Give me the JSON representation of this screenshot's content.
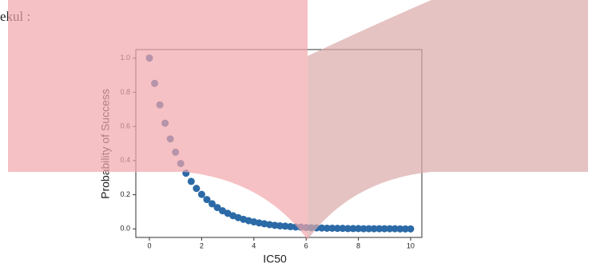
{
  "page_text": "ekul :",
  "chart_data": {
    "type": "scatter",
    "xlabel": "IC50",
    "ylabel": "Probability of Success",
    "color": "#2b6aa6",
    "x": [
      0,
      0.2,
      0.4,
      0.6,
      0.8,
      1.0,
      1.2,
      1.4,
      1.6,
      1.8,
      2.0,
      2.2,
      2.4,
      2.6,
      2.8,
      3.0,
      3.2,
      3.4,
      3.6,
      3.8,
      4.0,
      4.2,
      4.4,
      4.6,
      4.8,
      5.0,
      5.2,
      5.4,
      5.6,
      5.8,
      6.0,
      6.2,
      6.4,
      6.6,
      6.8,
      7.0,
      7.2,
      7.4,
      7.6,
      7.8,
      8.0,
      8.2,
      8.4,
      8.6,
      8.8,
      9.0,
      9.2,
      9.4,
      9.6,
      9.8,
      10
    ],
    "values": [
      1.0,
      0.852,
      0.726,
      0.619,
      0.527,
      0.449,
      0.383,
      0.326,
      0.278,
      0.237,
      0.202,
      0.172,
      0.147,
      0.125,
      0.106,
      0.091,
      0.077,
      0.066,
      0.056,
      0.048,
      0.041,
      0.035,
      0.03,
      0.025,
      0.021,
      0.018,
      0.016,
      0.013,
      0.011,
      0.01,
      0.008,
      0.007,
      0.006,
      0.005,
      0.004,
      0.004,
      0.003,
      0.003,
      0.002,
      0.002,
      0.002,
      0.001,
      0.001,
      0.001,
      0.001,
      0.001,
      0.001,
      0.001,
      0.0,
      0.0,
      0.0
    ],
    "xlim": [
      -0.52,
      10.43
    ],
    "ylim": [
      -0.05,
      1.05
    ],
    "xticks": [
      0,
      2,
      4,
      6,
      8,
      10
    ],
    "yticks": [
      {
        "value": 0,
        "label": "0.0"
      },
      0.2,
      0.4,
      0.6,
      0.8,
      {
        "value": 1,
        "label": "1.0"
      }
    ]
  }
}
